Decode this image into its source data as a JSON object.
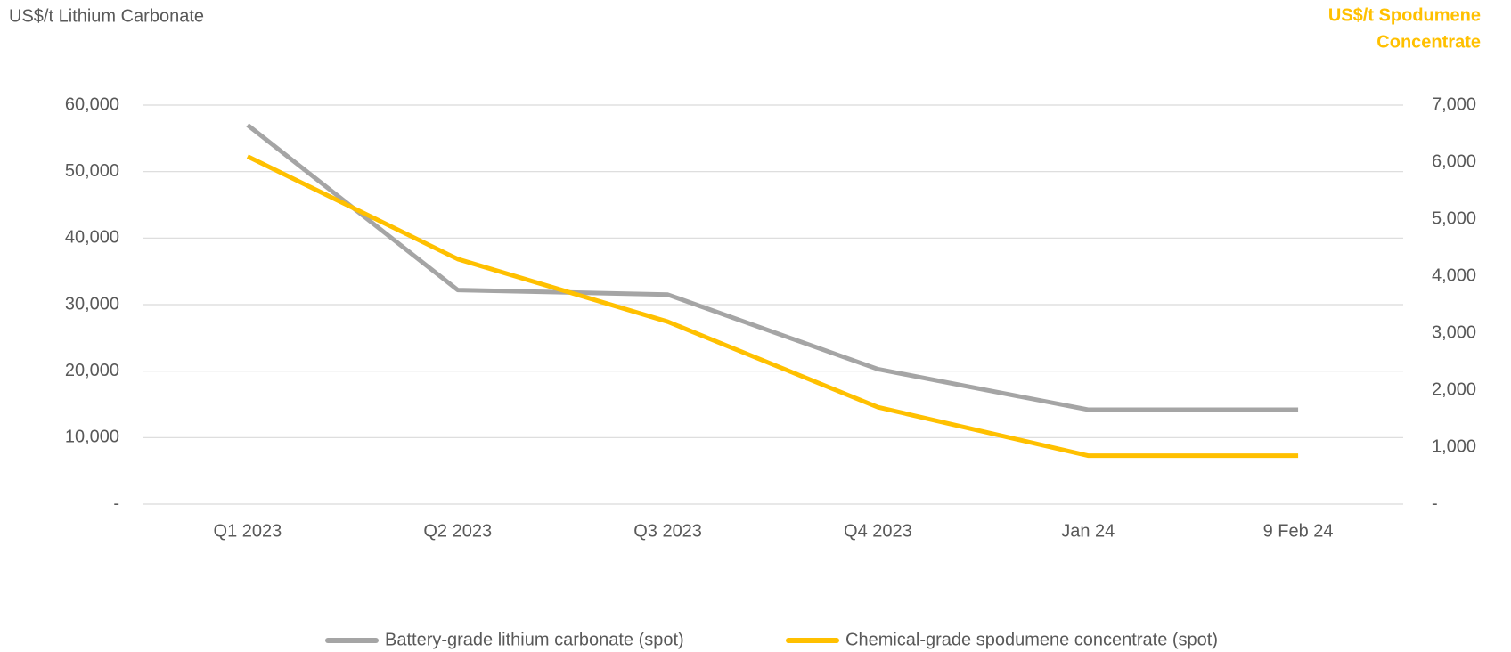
{
  "chart_data": {
    "type": "line",
    "ylabel": "US$/t Lithium Carbonate",
    "y2label": [
      "US$/t Spodumene",
      "Concentrate"
    ],
    "categories": [
      "Q1 2023",
      "Q2 2023",
      "Q3 2023",
      "Q4 2023",
      "Jan 24",
      "9 Feb 24"
    ],
    "series": [
      {
        "name": "Battery-grade lithium carbonate (spot)",
        "color": "#a5a5a5",
        "values": [
          57000,
          32200,
          31500,
          20300,
          14200,
          14200
        ]
      },
      {
        "name": "Chemical-grade spodumene concentrate (spot)",
        "color": "#ffc000",
        "axis": "y2",
        "values": [
          6100,
          4300,
          3200,
          1700,
          850,
          850
        ]
      }
    ],
    "ylim": [
      0,
      60000
    ],
    "yticks": [
      {
        "value": 0,
        "label": "-"
      },
      {
        "value": 10000,
        "label": "10,000"
      },
      {
        "value": 20000,
        "label": "20,000"
      },
      {
        "value": 30000,
        "label": "30,000"
      },
      {
        "value": 40000,
        "label": "40,000"
      },
      {
        "value": 50000,
        "label": "50,000"
      },
      {
        "value": 60000,
        "label": "60,000"
      }
    ],
    "y2lim": [
      0,
      7000
    ],
    "y2ticks": [
      {
        "value": 0,
        "label": "-"
      },
      {
        "value": 1000,
        "label": "1,000"
      },
      {
        "value": 2000,
        "label": "2,000"
      },
      {
        "value": 3000,
        "label": "3,000"
      },
      {
        "value": 4000,
        "label": "4,000"
      },
      {
        "value": 5000,
        "label": "5,000"
      },
      {
        "value": 6000,
        "label": "6,000"
      },
      {
        "value": 7000,
        "label": "7,000"
      }
    ],
    "grid": true,
    "legend": "bottom"
  }
}
